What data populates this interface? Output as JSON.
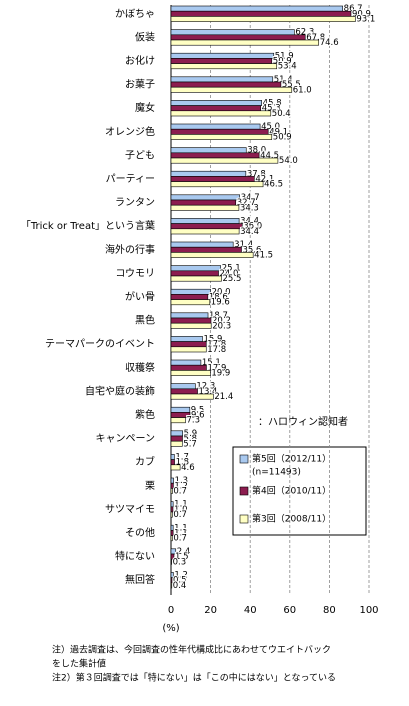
{
  "chart_data": {
    "type": "hbar",
    "categories": [
      "かぼちゃ",
      "仮装",
      "お化け",
      "お菓子",
      "魔女",
      "オレンジ色",
      "子ども",
      "パーティー",
      "ランタン",
      "「Trick or Treat」という言葉",
      "海外の行事",
      "コウモリ",
      "がい骨",
      "黒色",
      "テーマパークのイベント",
      "収穫祭",
      "自宅や庭の装飾",
      "紫色",
      "キャンペーン",
      "カブ",
      "栗",
      "サツマイモ",
      "その他",
      "特にない",
      "無回答"
    ],
    "series": [
      {
        "name": "第5回（2012/11）",
        "legend_note": "(n=11493)",
        "color": "#a9c9ef",
        "values": [
          86.7,
          62.3,
          51.9,
          51.4,
          45.8,
          45.0,
          38.0,
          37.8,
          34.7,
          34.4,
          31.4,
          25.1,
          20.0,
          18.7,
          15.9,
          15.1,
          12.3,
          9.5,
          5.9,
          1.7,
          1.3,
          1.1,
          1.1,
          2.4,
          1.2
        ],
        "value_labels": [
          "86.7",
          "62.3",
          "51.9",
          "51.4",
          "45.8",
          "45.0",
          "38.0",
          "37.8",
          "34.7",
          "34.4",
          "31.4",
          "25.1",
          "20.0",
          "18.7",
          "15.9",
          "15.1",
          "12.3",
          "9.5",
          "5.9",
          "1.7",
          "1.3",
          "1.1",
          "1.1",
          "2.4",
          "1.2"
        ]
      },
      {
        "name": "第4回（2010/11）",
        "color": "#8c1d4f",
        "values": [
          90.9,
          67.8,
          50.9,
          55.5,
          45.3,
          49.1,
          44.5,
          42.1,
          32.7,
          36.0,
          35.6,
          24.0,
          18.6,
          20.2,
          17.8,
          17.9,
          13.4,
          9.6,
          5.8,
          1.8,
          1.2,
          1.0,
          1.1,
          1.5,
          0.5
        ],
        "value_labels": [
          "90.9",
          "67.8",
          "50.9",
          "55.5",
          "45.3",
          "49.1",
          "44.5",
          "42.1",
          "32.7",
          "36.0",
          "35.6",
          "24.0",
          "18.6",
          "20.2",
          "17.8",
          "17.9",
          "13.4",
          "9.6",
          "5.8",
          "1.8",
          "1.2",
          "1.0",
          "1.1",
          "1.5",
          "0.5"
        ]
      },
      {
        "name": "第3回（2008/11）",
        "color": "#ffffc4",
        "values": [
          93.1,
          74.6,
          53.4,
          61.0,
          50.4,
          50.9,
          54.0,
          46.5,
          34.3,
          34.4,
          41.5,
          25.5,
          19.6,
          20.3,
          17.8,
          19.9,
          21.4,
          7.3,
          5.7,
          4.6,
          0.7,
          0.7,
          0.7,
          0.3,
          0.4
        ],
        "value_labels": [
          "93.1",
          "74.6",
          "53.4",
          "61.0",
          "50.4",
          "50.9",
          "54.0",
          "46.5",
          "34.3",
          "34.4",
          "41.5",
          "25.5",
          "19.6",
          "20.3",
          "17.8",
          "19.9",
          "21.4",
          "7.3",
          "5.7",
          "4.6",
          "0.7",
          "0.7",
          "0.7",
          "0.3",
          "0.4"
        ]
      }
    ],
    "xlim": [
      0,
      100
    ],
    "xticks": [
      0,
      20,
      40,
      60,
      80,
      100
    ],
    "grid": true,
    "xlabel": "(%)",
    "legend_title": "：ハロウィン認知者",
    "notes": [
      "注）過去調査は、今回調査の性年代構成比にあわせてウエイトバック",
      "をした集計値",
      "注2）第３回調査では「特にない」は「この中にはない」となっている"
    ]
  }
}
